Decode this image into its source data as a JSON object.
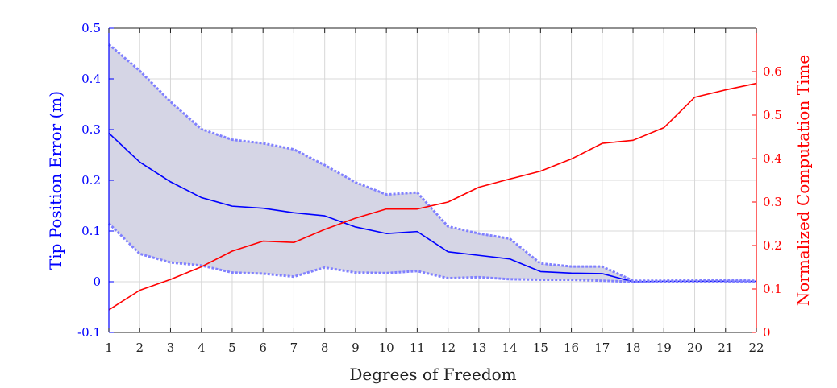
{
  "chart_data": {
    "type": "line",
    "xlabel": "Degrees of Freedom",
    "ylabel_left": "Tip Position Error (m)",
    "ylabel_right": "Normalized Computation Time",
    "x": [
      1,
      2,
      3,
      4,
      5,
      6,
      7,
      8,
      9,
      10,
      11,
      12,
      13,
      14,
      15,
      16,
      17,
      18,
      19,
      20,
      21,
      22
    ],
    "xlim": [
      1,
      22
    ],
    "ylim_left": [
      -0.1,
      0.5
    ],
    "ylim_right": [
      0,
      0.7
    ],
    "grid": true,
    "x_ticks": [
      "1",
      "2",
      "3",
      "4",
      "5",
      "6",
      "7",
      "8",
      "9",
      "10",
      "11",
      "12",
      "13",
      "14",
      "15",
      "16",
      "17",
      "18",
      "19",
      "20",
      "21",
      "22"
    ],
    "y_left_ticks": [
      "-0.1",
      "0",
      "0.1",
      "0.2",
      "0.3",
      "0.4",
      "0.5"
    ],
    "y_right_ticks": [
      "0",
      "0.1",
      "0.2",
      "0.3",
      "0.4",
      "0.5",
      "0.6"
    ],
    "series": [
      {
        "axis": "left",
        "color": "#0000ff",
        "values": [
          0.293,
          0.236,
          0.197,
          0.166,
          0.149,
          0.145,
          0.136,
          0.13,
          0.108,
          0.095,
          0.099,
          0.059,
          0.052,
          0.045,
          0.02,
          0.017,
          0.016,
          0.0,
          0.001,
          0.001,
          0.001,
          0.001
        ]
      },
      {
        "axis": "left",
        "role": "band-upper",
        "color": "#8080ff",
        "values": [
          0.468,
          0.416,
          0.355,
          0.301,
          0.28,
          0.273,
          0.261,
          0.23,
          0.196,
          0.172,
          0.176,
          0.109,
          0.095,
          0.085,
          0.036,
          0.03,
          0.03,
          0.002,
          0.002,
          0.003,
          0.003,
          0.002
        ]
      },
      {
        "axis": "left",
        "role": "band-lower",
        "color": "#8080ff",
        "values": [
          0.115,
          0.055,
          0.038,
          0.032,
          0.018,
          0.016,
          0.01,
          0.028,
          0.018,
          0.017,
          0.021,
          0.007,
          0.009,
          0.005,
          0.004,
          0.004,
          0.002,
          0.0,
          0.0,
          0.0,
          0.0,
          0.0
        ]
      },
      {
        "axis": "right",
        "color": "#ff0000",
        "values": [
          0.052,
          0.097,
          0.122,
          0.151,
          0.187,
          0.21,
          0.207,
          0.237,
          0.263,
          0.284,
          0.284,
          0.3,
          0.334,
          0.353,
          0.371,
          0.399,
          0.435,
          0.442,
          0.471,
          0.541,
          0.558,
          0.573
        ]
      }
    ],
    "band_fill_color": "#d5d5e5",
    "grid_color": "#d8d8d8",
    "left_axis_color": "#0000ff",
    "right_axis_color": "#ff0000"
  }
}
